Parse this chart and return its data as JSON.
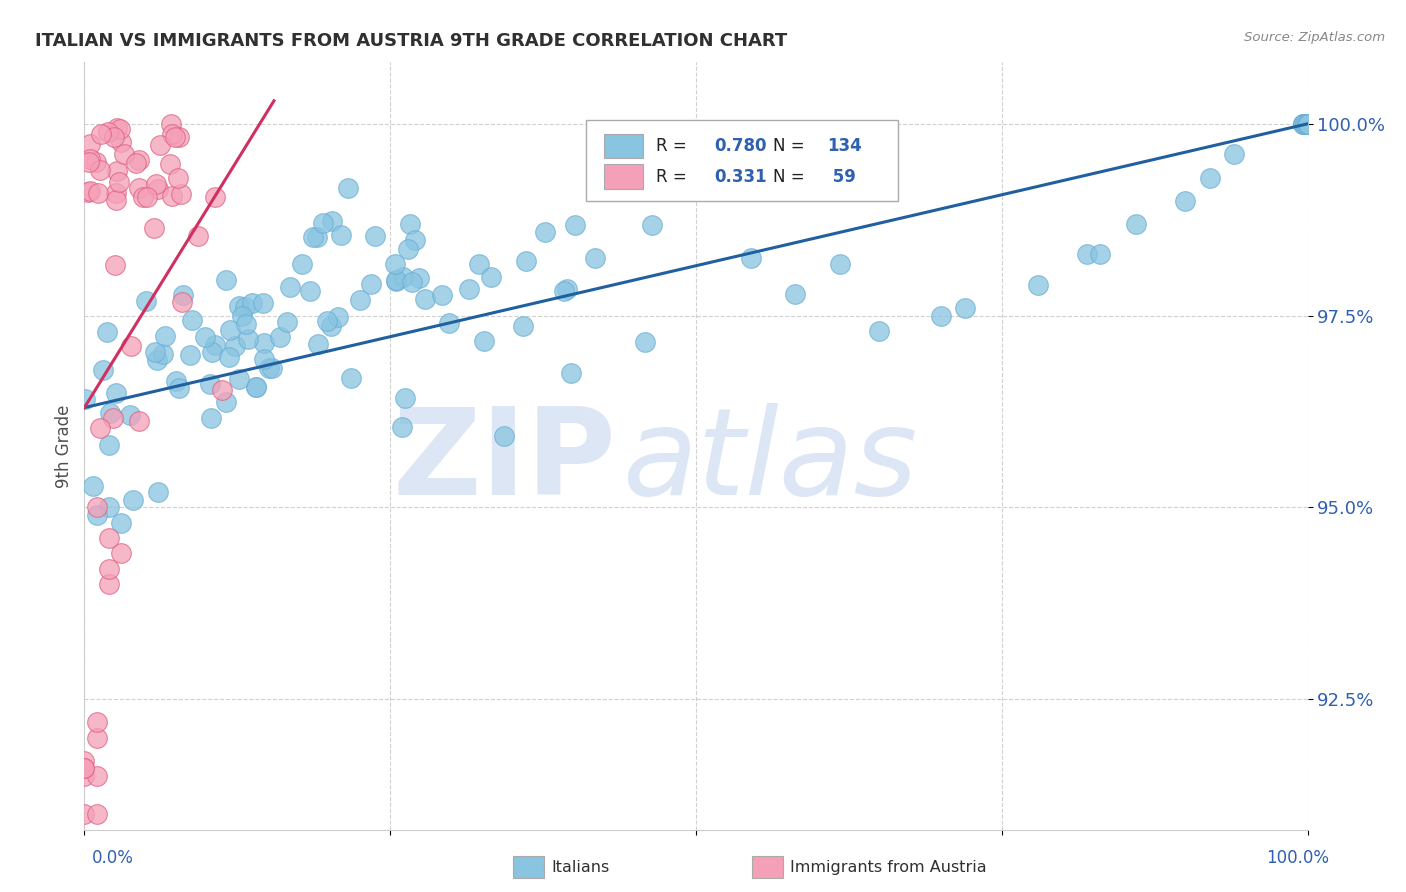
{
  "title": "ITALIAN VS IMMIGRANTS FROM AUSTRIA 9TH GRADE CORRELATION CHART",
  "source_text": "Source: ZipAtlas.com",
  "ylabel": "9th Grade",
  "blue_R": 0.78,
  "blue_N": 134,
  "pink_R": 0.331,
  "pink_N": 59,
  "blue_color": "#89c4e1",
  "pink_color": "#f4a0b8",
  "blue_edge_color": "#6aaed6",
  "pink_edge_color": "#e06080",
  "blue_line_color": "#2060a0",
  "pink_line_color": "#d03060",
  "ytick_labels": [
    "92.5%",
    "95.0%",
    "97.5%",
    "100.0%"
  ],
  "ytick_values": [
    0.925,
    0.95,
    0.975,
    1.0
  ],
  "xlim": [
    0.0,
    1.0
  ],
  "ylim": [
    0.908,
    1.008
  ],
  "background_color": "#ffffff",
  "grid_color": "#cccccc",
  "title_color": "#303030",
  "axis_color": "#505050",
  "ytick_color": "#3060b0",
  "xtick_color": "#3060b0"
}
